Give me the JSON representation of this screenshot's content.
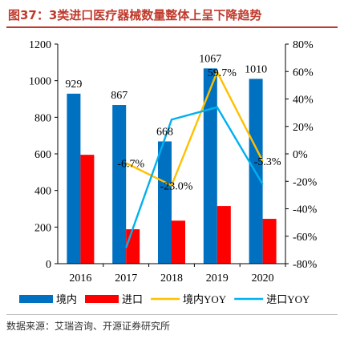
{
  "figure": {
    "title": "图37：3类进口医疗器械数量整体上呈下降趋势",
    "source": "数据来源：艾瑞咨询、开源证券研究所"
  },
  "colors": {
    "accent": "#c0392b",
    "domestic_bar": "#0070c0",
    "import_bar": "#ff0000",
    "domestic_yoy_line": "#ffc000",
    "import_yoy_line": "#00b0f0"
  },
  "chart_data": {
    "type": "bar",
    "categories": [
      "2016",
      "2017",
      "2018",
      "2019",
      "2020"
    ],
    "series": [
      {
        "name": "境内",
        "type": "bar",
        "axis": "left",
        "values": [
          929,
          867,
          668,
          1067,
          1010
        ],
        "labels": [
          "929",
          "867",
          "668",
          "1067",
          "1010"
        ]
      },
      {
        "name": "进口",
        "type": "bar",
        "axis": "left",
        "values": [
          595,
          188,
          235,
          315,
          245
        ]
      },
      {
        "name": "境内YOY",
        "type": "line",
        "axis": "right",
        "values": [
          null,
          -6.7,
          -23.0,
          59.7,
          -5.3
        ],
        "labels": [
          "",
          "-6.7%",
          "-23.0%",
          "59.7%",
          "-5.3%"
        ]
      },
      {
        "name": "进口YOY",
        "type": "line",
        "axis": "right",
        "values": [
          null,
          -68.4,
          25.0,
          34.0,
          -22.2
        ]
      }
    ],
    "ylim": [
      0,
      1200
    ],
    "yticks": [
      "0",
      "200",
      "400",
      "600",
      "800",
      "1000",
      "1200"
    ],
    "y2lim": [
      -80,
      80
    ],
    "y2ticks": [
      "-80%",
      "-60%",
      "-40%",
      "-20%",
      "0%",
      "20%",
      "40%",
      "60%",
      "80%"
    ],
    "legend_position": "bottom",
    "grid": false
  }
}
